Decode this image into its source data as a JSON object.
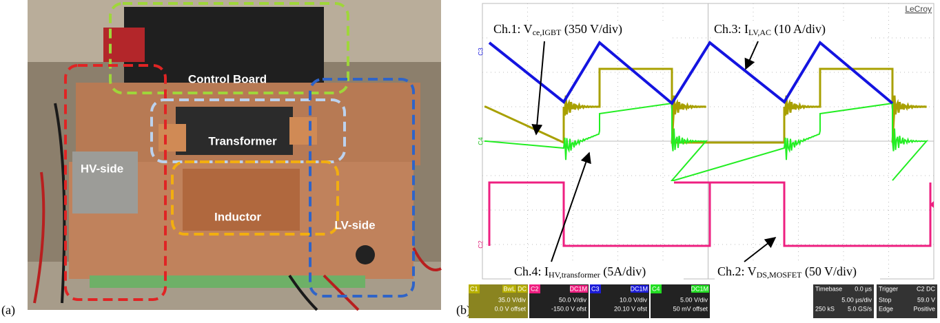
{
  "panel_a": {
    "label": "(a)",
    "annotations": [
      "Control Board",
      "Transformer",
      "HV-side",
      "Inductor",
      "LV-side"
    ]
  },
  "panel_b": {
    "label": "(b)",
    "brand": "LeCroy",
    "channel_tags": [
      "C3",
      "C4",
      "C2"
    ],
    "traces": [
      {
        "main": "Ch.1: V",
        "sub": "ce,IGBT",
        "tail": " (350 V/div)"
      },
      {
        "main": "Ch.3: I",
        "sub": "LV,AC",
        "tail": " (10 A/div)"
      },
      {
        "main": "Ch.4: I",
        "sub": "HV,transformer",
        "tail": " (5A/div)"
      },
      {
        "main": "Ch.2: V",
        "sub": "DS,MOSFET",
        "tail": " (50 V/div)"
      }
    ],
    "channels": [
      {
        "name": "C1",
        "flags": [
          "BwL",
          "DC"
        ],
        "lines": [
          "35.0 V/div",
          "0.0 V offset"
        ]
      },
      {
        "name": "C2",
        "flags": [
          "DC1M"
        ],
        "lines": [
          "50.0 V/div",
          "-150.0 V ofst"
        ]
      },
      {
        "name": "C3",
        "flags": [
          "DC1M"
        ],
        "lines": [
          "10.0 V/div",
          "20.10 V ofst"
        ]
      },
      {
        "name": "C4",
        "flags": [
          "DC1M"
        ],
        "lines": [
          "5.00 V/div",
          "50 mV offset"
        ]
      }
    ],
    "timebase": {
      "title": "Timebase",
      "offset": "0.0 µs",
      "rows": [
        [
          "",
          "5.00 µs/div"
        ],
        [
          "250 kS",
          "5.0 GS/s"
        ]
      ]
    },
    "trigger": {
      "title": "Trigger",
      "source": "C2 DC",
      "rows": [
        [
          "Stop",
          "59.0 V"
        ],
        [
          "Edge",
          "Positive"
        ]
      ]
    }
  }
}
